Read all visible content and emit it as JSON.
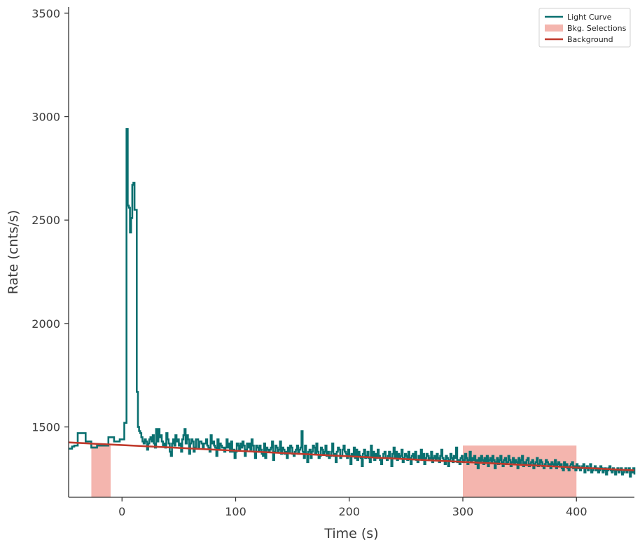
{
  "chart_data": {
    "type": "line",
    "xlabel": "Time (s)",
    "ylabel": "Rate (cnts/s)",
    "xlim": [
      -47,
      451
    ],
    "ylim": [
      1160,
      3530
    ],
    "x_ticks": [
      0,
      100,
      200,
      300,
      400
    ],
    "x_tick_labels": [
      "0",
      "100",
      "200",
      "300",
      "400"
    ],
    "y_ticks": [
      1500,
      2000,
      2500,
      3000,
      3500
    ],
    "y_tick_labels": [
      "1500",
      "2000",
      "2500",
      "3000",
      "3500"
    ],
    "grid": false,
    "legend_position": "top-right",
    "colors": {
      "light_curve": "#0a7070",
      "bkg_selection": "#f4b5ae",
      "background": "#c0392b",
      "axis": "#333333"
    },
    "legend": [
      {
        "label": "Light Curve",
        "kind": "line",
        "color_key": "light_curve"
      },
      {
        "label": "Bkg. Selections",
        "kind": "patch",
        "color_key": "bkg_selection"
      },
      {
        "label": "Background",
        "kind": "line",
        "color_key": "background"
      }
    ],
    "background_selections": [
      [
        -27,
        -10
      ],
      [
        300,
        400
      ]
    ],
    "background_line": {
      "x": [
        -47,
        451
      ],
      "y": [
        1425,
        1290
      ]
    },
    "light_curve": {
      "name": "Light Curve",
      "x_start": -47,
      "bin": 1,
      "values": [
        1395,
        1395,
        1395,
        1405,
        1405,
        1410,
        1410,
        1410,
        1470,
        1470,
        1470,
        1470,
        1470,
        1470,
        1470,
        1430,
        1430,
        1430,
        1430,
        1430,
        1400,
        1400,
        1400,
        1400,
        1400,
        1410,
        1410,
        1410,
        1410,
        1410,
        1410,
        1410,
        1410,
        1410,
        1410,
        1450,
        1450,
        1450,
        1450,
        1450,
        1430,
        1430,
        1430,
        1430,
        1430,
        1440,
        1440,
        1440,
        1440,
        1520,
        1520,
        2940,
        2570,
        2560,
        2440,
        2510,
        2670,
        2680,
        2550,
        2550,
        1670,
        1500,
        1480,
        1470,
        1450,
        1430,
        1420,
        1440,
        1430,
        1390,
        1420,
        1440,
        1450,
        1430,
        1460,
        1420,
        1400,
        1490,
        1430,
        1490,
        1450,
        1460,
        1430,
        1410,
        1420,
        1400,
        1470,
        1440,
        1420,
        1380,
        1360,
        1420,
        1440,
        1410,
        1460,
        1430,
        1440,
        1410,
        1420,
        1380,
        1440,
        1460,
        1490,
        1420,
        1460,
        1440,
        1370,
        1420,
        1440,
        1430,
        1380,
        1400,
        1440,
        1440,
        1400,
        1430,
        1430,
        1420,
        1400,
        1420,
        1420,
        1440,
        1410,
        1400,
        1380,
        1460,
        1420,
        1430,
        1410,
        1400,
        1360,
        1440,
        1390,
        1420,
        1410,
        1400,
        1400,
        1380,
        1400,
        1440,
        1400,
        1420,
        1380,
        1430,
        1380,
        1390,
        1350,
        1380,
        1420,
        1410,
        1390,
        1420,
        1400,
        1430,
        1410,
        1360,
        1390,
        1420,
        1400,
        1420,
        1390,
        1440,
        1410,
        1380,
        1350,
        1410,
        1400,
        1380,
        1410,
        1390,
        1370,
        1360,
        1420,
        1350,
        1400,
        1390,
        1380,
        1390,
        1400,
        1430,
        1340,
        1380,
        1410,
        1400,
        1380,
        1390,
        1430,
        1370,
        1400,
        1390,
        1370,
        1380,
        1350,
        1400,
        1380,
        1410,
        1400,
        1370,
        1360,
        1380,
        1390,
        1410,
        1370,
        1390,
        1400,
        1480,
        1380,
        1350,
        1410,
        1370,
        1330,
        1380,
        1390,
        1350,
        1380,
        1410,
        1400,
        1370,
        1420,
        1380,
        1350,
        1360,
        1400,
        1390,
        1370,
        1380,
        1410,
        1360,
        1380,
        1350,
        1360,
        1380,
        1420,
        1360,
        1370,
        1330,
        1380,
        1400,
        1390,
        1350,
        1360,
        1390,
        1410,
        1380,
        1370,
        1350,
        1390,
        1360,
        1320,
        1370,
        1360,
        1400,
        1350,
        1390,
        1340,
        1380,
        1360,
        1350,
        1310,
        1370,
        1390,
        1350,
        1360,
        1380,
        1350,
        1330,
        1410,
        1360,
        1380,
        1340,
        1370,
        1350,
        1390,
        1360,
        1340,
        1320,
        1350,
        1370,
        1380,
        1350,
        1340,
        1360,
        1380,
        1350,
        1310,
        1370,
        1400,
        1350,
        1380,
        1340,
        1370,
        1350,
        1360,
        1390,
        1330,
        1350,
        1370,
        1360,
        1340,
        1380,
        1350,
        1320,
        1360,
        1370,
        1350,
        1380,
        1340,
        1330,
        1360,
        1350,
        1390,
        1340,
        1370,
        1320,
        1350,
        1370,
        1360,
        1340,
        1350,
        1380,
        1330,
        1350,
        1360,
        1340,
        1370,
        1350,
        1330,
        1360,
        1390,
        1350,
        1340,
        1320,
        1360,
        1350,
        1310,
        1340,
        1370,
        1350,
        1330,
        1360,
        1350,
        1400,
        1330,
        1340,
        1320,
        1350,
        1360,
        1330,
        1340,
        1370,
        1350,
        1320,
        1340,
        1380,
        1330,
        1350,
        1340,
        1360,
        1320,
        1340,
        1300,
        1350,
        1330,
        1360,
        1340,
        1320,
        1350,
        1330,
        1360,
        1310,
        1340,
        1350,
        1330,
        1360,
        1340,
        1300,
        1330,
        1350,
        1320,
        1340,
        1360,
        1330,
        1310,
        1340,
        1350,
        1320,
        1330,
        1360,
        1340,
        1310,
        1330,
        1350,
        1320,
        1340,
        1330,
        1300,
        1350,
        1320,
        1340,
        1360,
        1310,
        1330,
        1320,
        1340,
        1350,
        1310,
        1320,
        1330,
        1340,
        1300,
        1320,
        1330,
        1350,
        1310,
        1320,
        1340,
        1330,
        1310,
        1300,
        1320,
        1340,
        1330,
        1310,
        1320,
        1300,
        1330,
        1320,
        1310,
        1340,
        1300,
        1320,
        1330,
        1310,
        1320,
        1300,
        1290,
        1330,
        1310,
        1320,
        1300,
        1290,
        1310,
        1320,
        1330,
        1300,
        1310,
        1290,
        1320,
        1300,
        1310,
        1290,
        1300,
        1310,
        1320,
        1280,
        1300,
        1310,
        1290,
        1300,
        1320,
        1280,
        1290,
        1300,
        1310,
        1290,
        1300,
        1280,
        1290,
        1310,
        1300,
        1280,
        1290,
        1300,
        1270,
        1290,
        1300,
        1310,
        1290,
        1280,
        1300,
        1290,
        1270,
        1290,
        1300,
        1280,
        1290,
        1300,
        1270,
        1280,
        1290,
        1300,
        1280,
        1290,
        1300,
        1260,
        1290,
        1280,
        1300,
        1270,
        1300,
        1290,
        1280,
        1300,
        1290,
        1270,
        1320,
        1280,
        1290,
        1240,
        1300,
        1270
      ]
    }
  }
}
